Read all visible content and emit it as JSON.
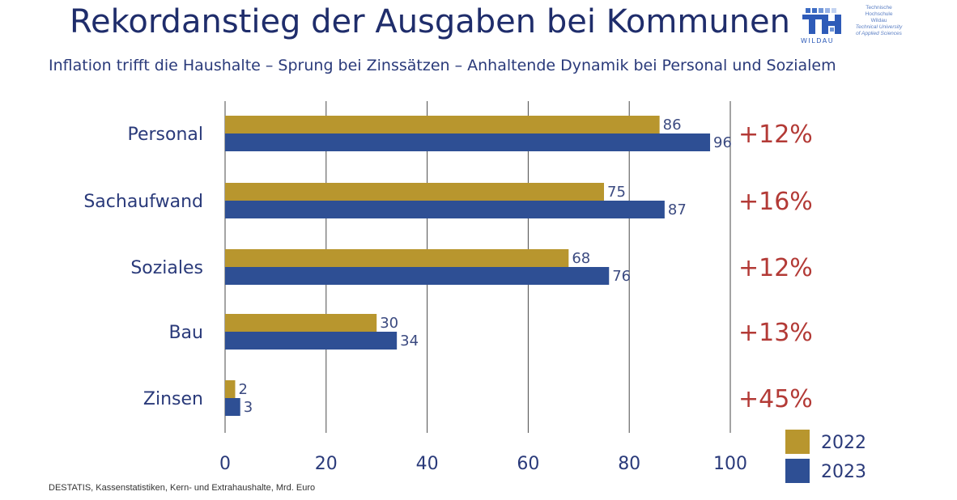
{
  "title": "Rekordanstieg der Ausgaben bei Kommunen",
  "subtitle": "Inflation trifft die Haushalte – Sprung bei Zinssätzen – Anhaltende Dynamik bei Personal und Sozialem",
  "logo": {
    "mark": "TH",
    "lines": [
      "Technische",
      "Hochschule",
      "Wildau",
      "Technical University",
      "of Applied Sciences"
    ],
    "wordmark": "WILDAU"
  },
  "source": "DESTATIS, Kassenstatistiken, Kern- und Extrahaushalte, Mrd. Euro",
  "colors": {
    "series_2022": "#b8962e",
    "series_2023": "#2e4f94",
    "change": "#b33a36",
    "text": "#2a3a7a"
  },
  "chart_data": {
    "type": "bar",
    "orientation": "horizontal",
    "categories": [
      "Personal",
      "Sachaufwand",
      "Soziales",
      "Bau",
      "Zinsen"
    ],
    "series": [
      {
        "name": "2022",
        "values": [
          86,
          75,
          68,
          30,
          2
        ]
      },
      {
        "name": "2023",
        "values": [
          96,
          87,
          76,
          34,
          3
        ]
      }
    ],
    "changes": [
      "+12%",
      "+16%",
      "+12%",
      "+13%",
      "+45%"
    ],
    "xlim": [
      0,
      100
    ],
    "xticks": [
      0,
      20,
      40,
      60,
      80,
      100
    ],
    "grid": true,
    "legend_position": "bottom-right"
  }
}
